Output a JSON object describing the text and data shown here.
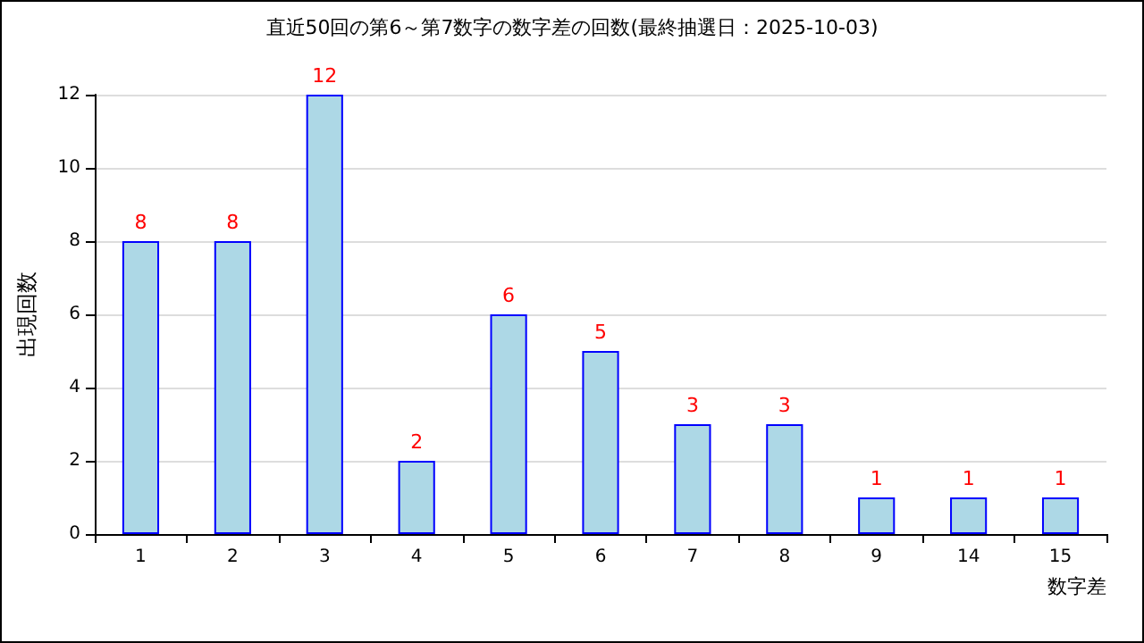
{
  "chart_data": {
    "type": "bar",
    "title": "直近50回の第6～第7数字の数字差の回数(最終抽選日：2025-10-03)",
    "xlabel": "数字差",
    "ylabel": "出現回数",
    "categories": [
      "1",
      "2",
      "3",
      "4",
      "5",
      "6",
      "7",
      "8",
      "9",
      "14",
      "15"
    ],
    "values": [
      8,
      8,
      12,
      2,
      6,
      5,
      3,
      3,
      1,
      1,
      1
    ],
    "color": "#add8e6",
    "ylim": [
      0,
      12
    ],
    "yticks": [
      0,
      2,
      4,
      6,
      8,
      10,
      12
    ],
    "grid": "y",
    "data_labels": true
  }
}
